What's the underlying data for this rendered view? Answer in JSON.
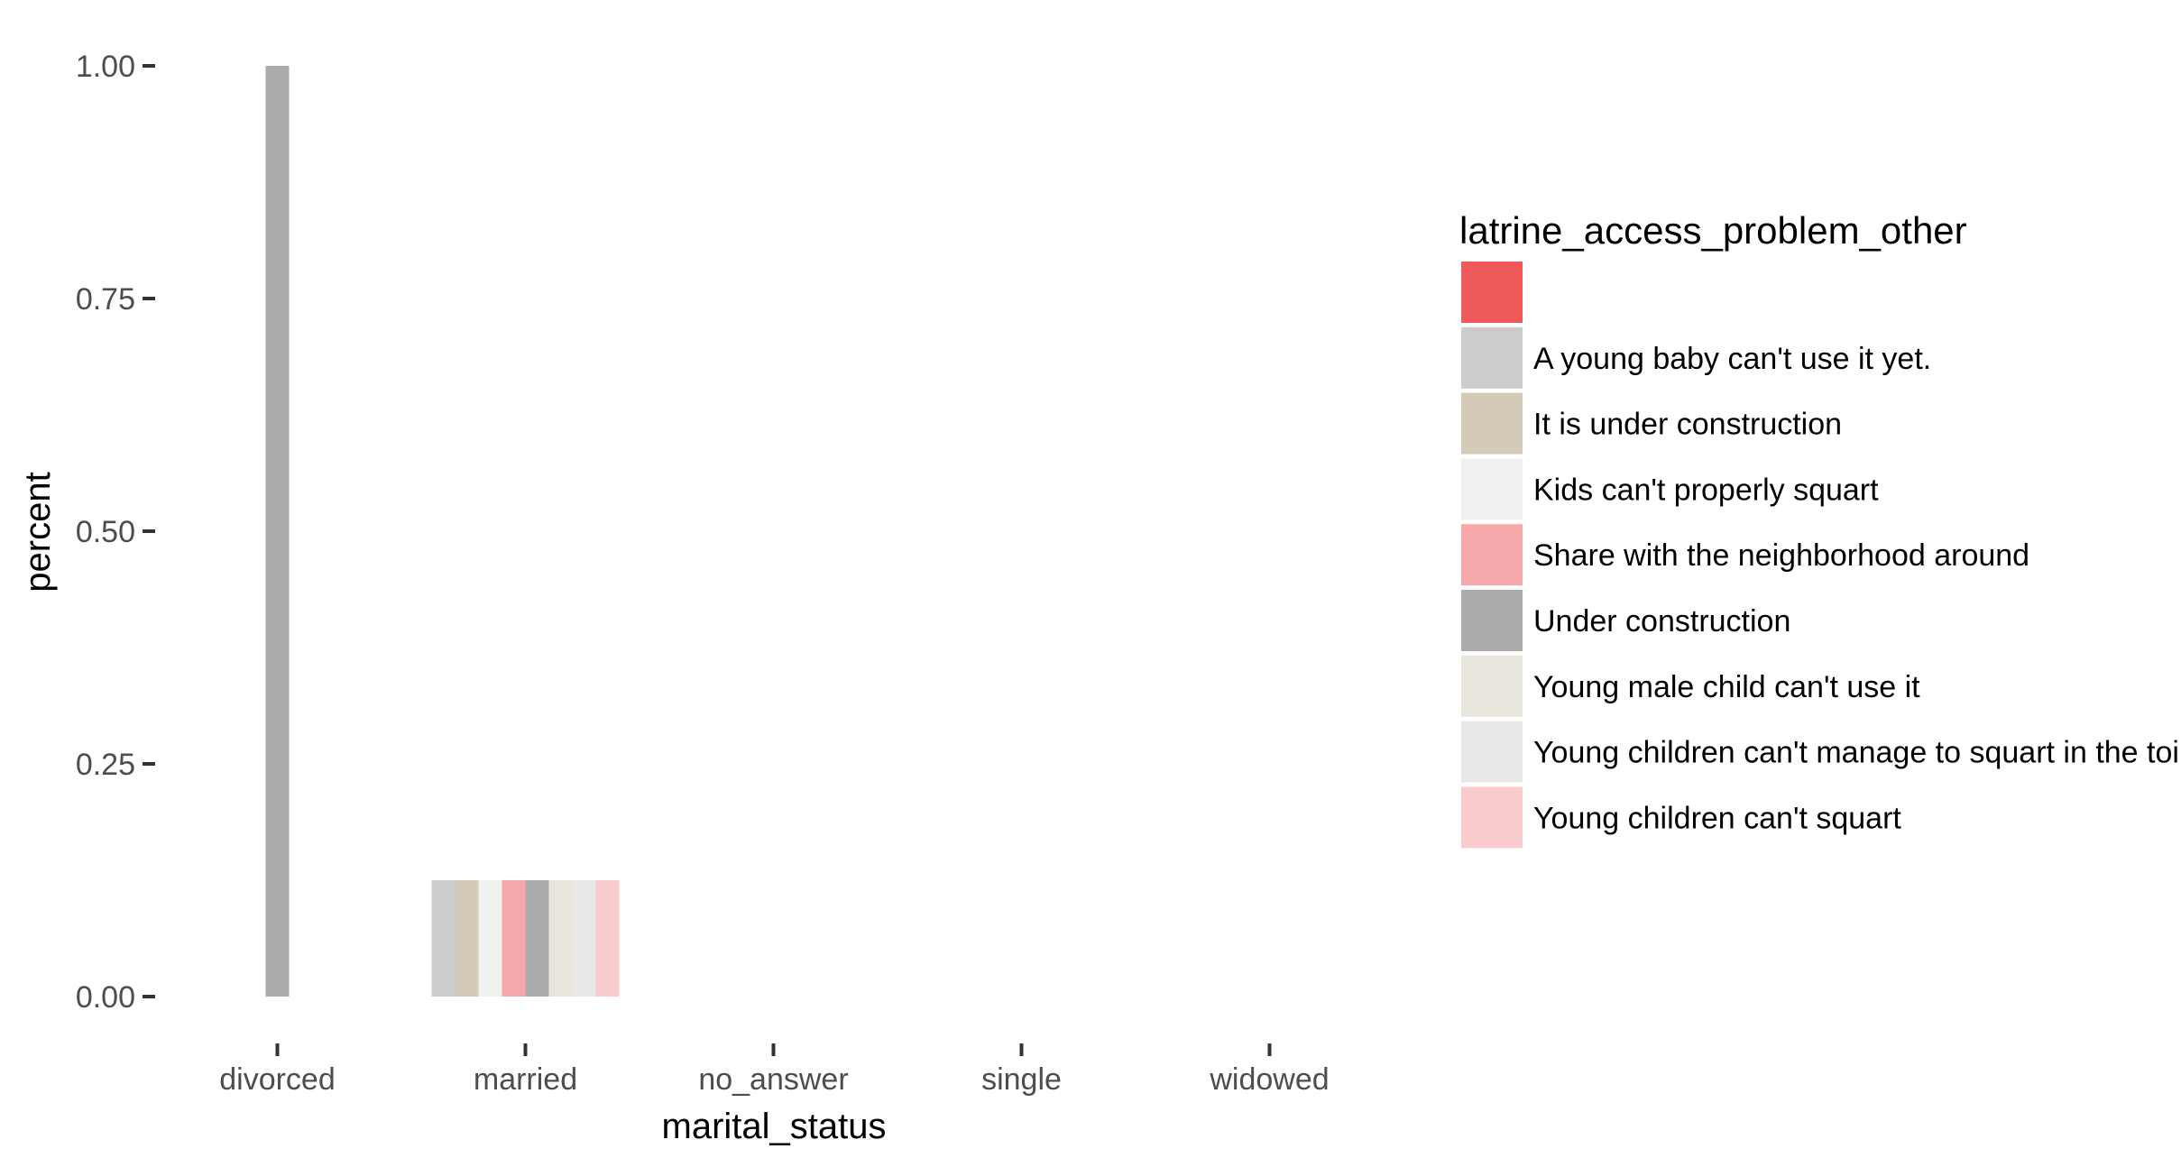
{
  "chart_data": {
    "type": "bar",
    "position": "dodge",
    "xlabel": "marital_status",
    "ylabel": "percent",
    "categories": [
      "divorced",
      "married",
      "no_answer",
      "single",
      "widowed"
    ],
    "ylim": [
      0,
      1
    ],
    "yticks": [
      0,
      0.25,
      0.5,
      0.75,
      1
    ],
    "ytick_labels": [
      "0.00",
      "0.25",
      "0.50",
      "0.75",
      "1.00"
    ],
    "grid": false,
    "legend": {
      "title": "latrine_access_problem_other",
      "placement": "right",
      "entries": [
        {
          "label": "",
          "color": "#f05a5a"
        },
        {
          "label": "A young  baby can't use it yet.",
          "color": "#cccccc"
        },
        {
          "label": "It is under construction",
          "color": "#d3cbb8"
        },
        {
          "label": "Kids can't  properly squart",
          "color": "#f1f2f0"
        },
        {
          "label": "Share with the neighborhood around",
          "color": "#f7a8aa"
        },
        {
          "label": "Under construction",
          "color": "#ababab"
        },
        {
          "label": "Young  male child can't use it",
          "color": "#e8e6dc"
        },
        {
          "label": "Young children can't manage to squart in the toilets",
          "color": "#e8e8e7"
        },
        {
          "label": "Young children can't squart",
          "color": "#f9cbcc"
        }
      ]
    },
    "groups": [
      {
        "category": "divorced",
        "bars": [
          {
            "series": "Under construction",
            "value": 1.0
          }
        ]
      },
      {
        "category": "married",
        "bars": [
          {
            "series": "A young  baby can't use it yet.",
            "value": 0.125
          },
          {
            "series": "It is under construction",
            "value": 0.125
          },
          {
            "series": "Kids can't  properly squart",
            "value": 0.125
          },
          {
            "series": "Share with the neighborhood around",
            "value": 0.125
          },
          {
            "series": "Under construction",
            "value": 0.125
          },
          {
            "series": "Young  male child can't use it",
            "value": 0.125
          },
          {
            "series": "Young children can't manage to squart in the toilets",
            "value": 0.125
          },
          {
            "series": "Young children can't squart",
            "value": 0.125
          }
        ]
      }
    ]
  }
}
